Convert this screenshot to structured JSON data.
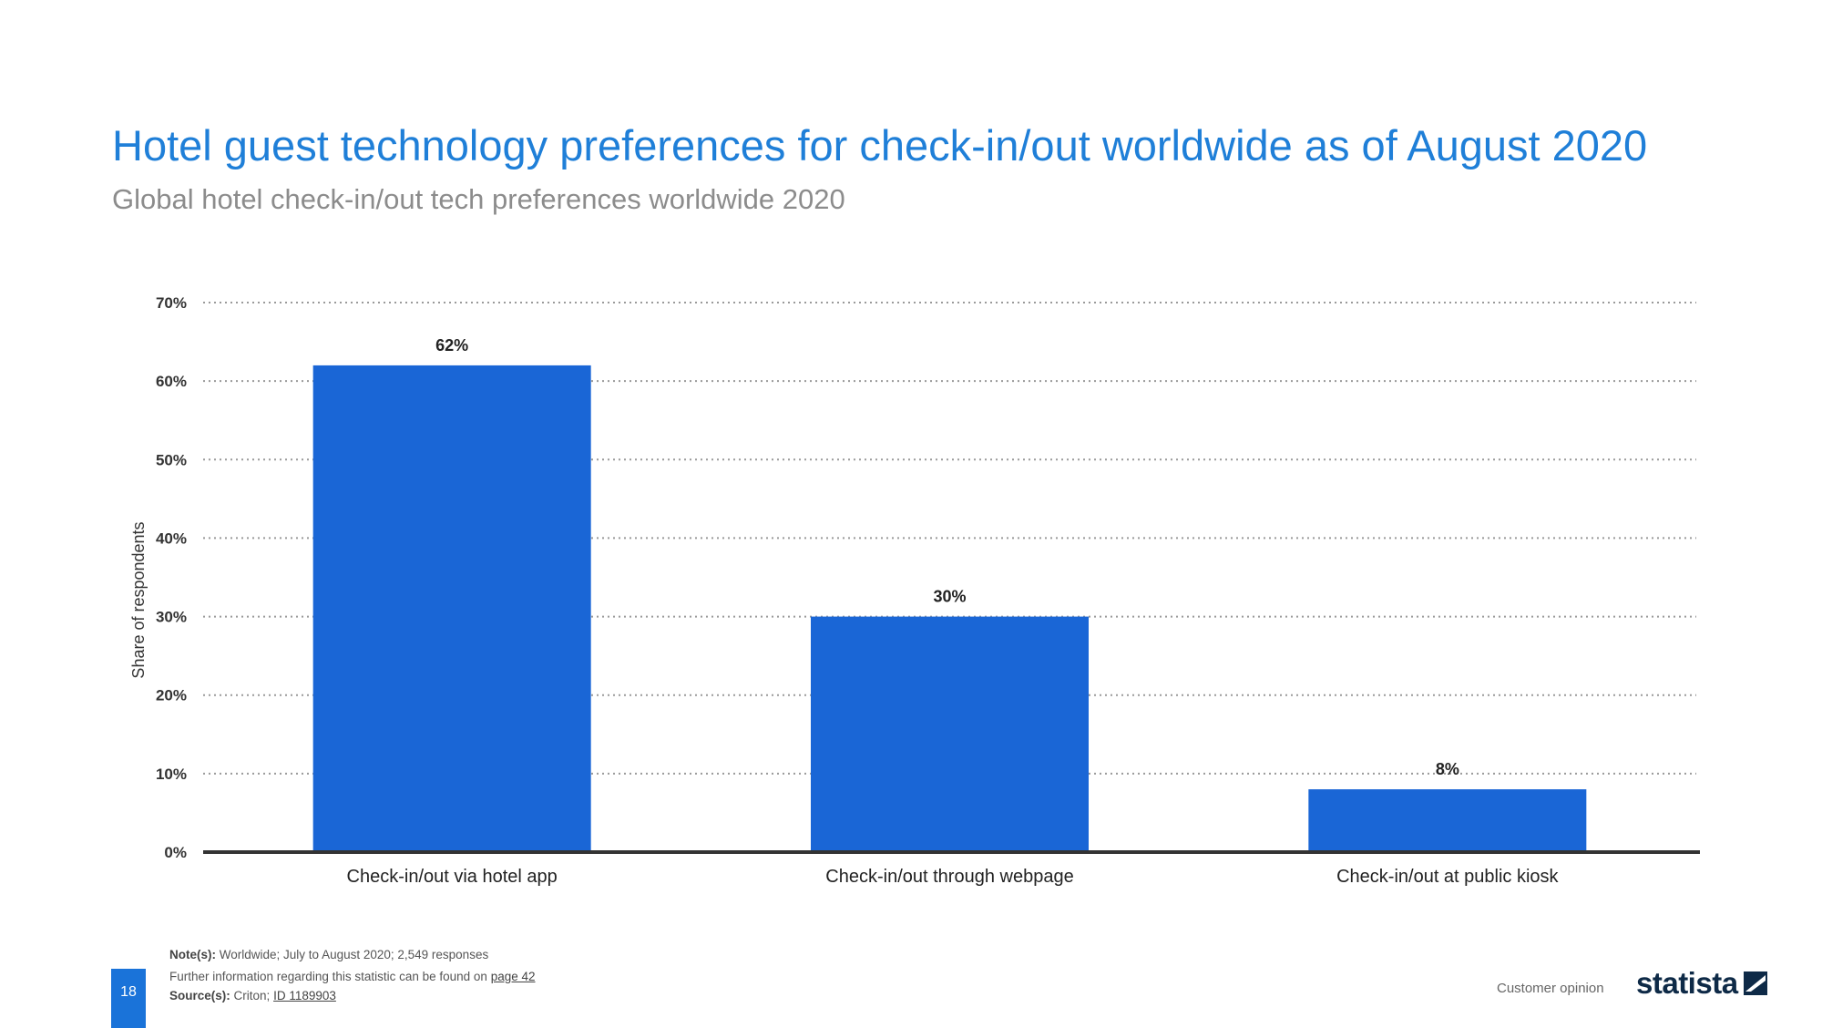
{
  "header": {
    "title": "Hotel guest technology preferences for check-in/out worldwide as of August 2020",
    "subtitle": "Global hotel check-in/out tech preferences worldwide 2020"
  },
  "chart_data": {
    "type": "bar",
    "categories": [
      "Check-in/out via hotel app",
      "Check-in/out through webpage",
      "Check-in/out at public kiosk"
    ],
    "values": [
      62,
      30,
      8
    ],
    "data_labels": [
      "62%",
      "30%",
      "8%"
    ],
    "ylabel": "Share of respondents",
    "xlabel": "",
    "ylim": [
      0,
      70
    ],
    "yticks": [
      0,
      10,
      20,
      30,
      40,
      50,
      60,
      70
    ],
    "ytick_labels": [
      "0%",
      "10%",
      "20%",
      "30%",
      "40%",
      "50%",
      "60%",
      "70%"
    ],
    "grid": true,
    "grid_style": "dotted",
    "bar_color": "#1a66d6",
    "legend": false
  },
  "footer": {
    "note_label": "Note(s):",
    "note_text": "Worldwide; July to August 2020; 2,549 responses",
    "further_text": "Further information regarding this statistic can be found on",
    "further_link": "page 42",
    "source_label": "Source(s):",
    "source_text": "Criton;",
    "source_link": "ID 1189903",
    "page_number": "18",
    "category": "Customer opinion",
    "brand": "statista"
  },
  "colors": {
    "title": "#1f7fd8",
    "subtitle": "#8c8c8c",
    "accent": "#1a73d9",
    "brand": "#0e2a47"
  }
}
